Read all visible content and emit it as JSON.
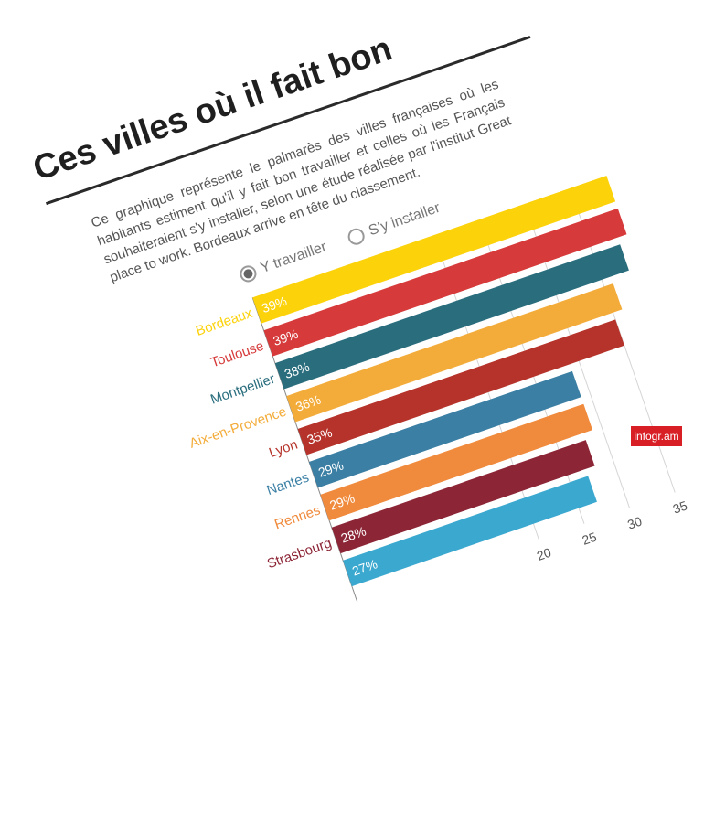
{
  "title": "Ces villes où il fait bon",
  "description": "Ce graphique représente le palmarès des villes françaises où les habitants estiment qu'il y fait bon travailler et celles où les Français souhaiteraient s'y installer, selon une étude réalisée par l'institut Great place to work. Bordeaux arrive en tête du classement.",
  "toggle": {
    "option1": "Y travailler",
    "option2": "S'y installer"
  },
  "brand": "infogr.am",
  "chart_data": {
    "type": "bar",
    "orientation": "horizontal",
    "categories": [
      "Bordeaux",
      "Toulouse",
      "Montpellier",
      "Aix-en-Provence",
      "Lyon",
      "Nantes",
      "Rennes",
      "Strasbourg",
      ""
    ],
    "values": [
      39,
      39,
      38,
      36,
      35,
      29,
      29,
      28,
      27
    ],
    "value_labels": [
      "39%",
      "39%",
      "38%",
      "36%",
      "35%",
      "29%",
      "29%",
      "28%",
      "27%"
    ],
    "colors": [
      "#fcd20a",
      "#d63a3a",
      "#2a6e7e",
      "#f3ac3a",
      "#b5332a",
      "#3b7fa4",
      "#f08a3c",
      "#8c2536",
      "#3aa8cf"
    ],
    "tick_labels": [
      "20",
      "25",
      "30",
      "35"
    ],
    "xlim": [
      0,
      40
    ],
    "grid": true
  }
}
